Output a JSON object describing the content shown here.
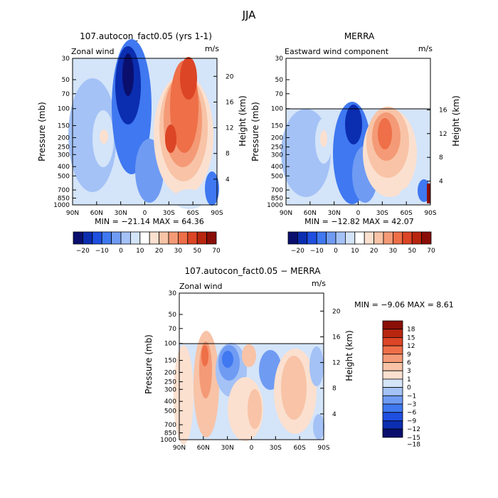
{
  "figure_title": "JJA",
  "colors": {
    "cb_wind": [
      "#0a0f6e",
      "#0b2db0",
      "#1f4fe0",
      "#3f78f0",
      "#6f9bf3",
      "#a4c2f6",
      "#d4e4f9",
      "#ffffff",
      "#fbe0cf",
      "#f8c3a6",
      "#f49a76",
      "#ee6f48",
      "#dc4525",
      "#b8260f",
      "#8a0e08"
    ],
    "cb_diff": [
      "#0a0f6e",
      "#0b2db0",
      "#1f4fe0",
      "#3f78f0",
      "#6f9bf3",
      "#a4c2f6",
      "#d4e4f9",
      "#fbe0cf",
      "#f8c3a6",
      "#f49a76",
      "#ee6f48",
      "#dc4525",
      "#b8260f",
      "#8a0e08"
    ]
  },
  "chart_data": [
    {
      "type": "heatmap",
      "panel": "model",
      "title": "107.autocon_fact0.05 (yrs 1-1)",
      "subtitle_left": "Zonal wind",
      "units": "m/s",
      "xlabel": "",
      "ylabel": "Pressure (mb)",
      "y2label": "Height (km)",
      "xticks": [
        "90N",
        "60N",
        "30N",
        "0",
        "30S",
        "60S",
        "90S"
      ],
      "yticks": [
        30,
        50,
        70,
        100,
        150,
        200,
        250,
        300,
        400,
        500,
        700,
        850,
        1000
      ],
      "y2ticks": [
        20,
        16,
        12,
        8,
        4
      ],
      "ylim": [
        1000,
        30
      ],
      "stats": "MIN = −21.14   MAX =  64.36",
      "colorbar_labels": [
        "−20",
        "−10",
        "0",
        "10",
        "20",
        "30",
        "50",
        "70"
      ],
      "features": [
        {
          "lat": -48,
          "p": 40,
          "value": 50
        },
        {
          "lat": -42,
          "p": 200,
          "value": 35
        },
        {
          "lat": 38,
          "p": 200,
          "value": 20
        },
        {
          "lat": 22,
          "p": 60,
          "value": -20
        },
        {
          "lat": 5,
          "p": 400,
          "value": -10
        },
        {
          "lat": 72,
          "p": 500,
          "value": 8
        },
        {
          "lat": -75,
          "p": 800,
          "value": -10
        }
      ]
    },
    {
      "type": "heatmap",
      "panel": "reanalysis",
      "title": "MERRA",
      "subtitle_left": "Eastward wind component",
      "units": "m/s",
      "xlabel": "",
      "ylabel": "Pressure (mb)",
      "y2label": "Height (km)",
      "xticks": [
        "90N",
        "60N",
        "30N",
        "0",
        "30S",
        "60S",
        "90S"
      ],
      "yticks": [
        30,
        50,
        70,
        100,
        150,
        200,
        250,
        300,
        400,
        500,
        700,
        850,
        1000
      ],
      "y2ticks": [
        16,
        12,
        8,
        4
      ],
      "ylim": [
        1000,
        30
      ],
      "data_top_p": 100,
      "stats": "MIN = −12.82   MAX =  42.07",
      "colorbar_labels": [
        "−20",
        "−10",
        "0",
        "10",
        "20",
        "30",
        "50",
        "70"
      ],
      "features": [
        {
          "lat": -28,
          "p": 200,
          "value": 35
        },
        {
          "lat": 40,
          "p": 200,
          "value": 18
        },
        {
          "lat": 10,
          "p": 150,
          "value": -12
        },
        {
          "lat": -80,
          "p": 900,
          "value": 35
        },
        {
          "lat": 72,
          "p": 500,
          "value": 8
        }
      ]
    },
    {
      "type": "heatmap",
      "panel": "difference",
      "title": "107.autocon_fact0.05 − MERRA",
      "subtitle_left": "Zonal wind",
      "units": "m/s",
      "xlabel": "",
      "ylabel": "Pressure (mb)",
      "y2label": "Height (km)",
      "xticks": [
        "90N",
        "60N",
        "30N",
        "0",
        "30S",
        "60S",
        "90S"
      ],
      "yticks": [
        30,
        50,
        70,
        100,
        150,
        200,
        250,
        300,
        400,
        500,
        700,
        850,
        1000
      ],
      "y2ticks": [
        20,
        16,
        12,
        8,
        4
      ],
      "ylim": [
        1000,
        30
      ],
      "data_top_p": 100,
      "stats": "MIN =   −9.06   MAX =    8.61",
      "colorbar_labels": [
        "18",
        "15",
        "12",
        "9",
        "6",
        "3",
        "1",
        "0",
        "−1",
        "−3",
        "−6",
        "−9",
        "−12",
        "−15",
        "−18"
      ],
      "features": [
        {
          "lat": 60,
          "p": 200,
          "value": 6
        },
        {
          "lat": 20,
          "p": 200,
          "value": -6
        },
        {
          "lat": -5,
          "p": 130,
          "value": 3
        },
        {
          "lat": -25,
          "p": 250,
          "value": -5
        },
        {
          "lat": -50,
          "p": 400,
          "value": 3
        },
        {
          "lat": -70,
          "p": 500,
          "value": 2
        }
      ]
    }
  ]
}
